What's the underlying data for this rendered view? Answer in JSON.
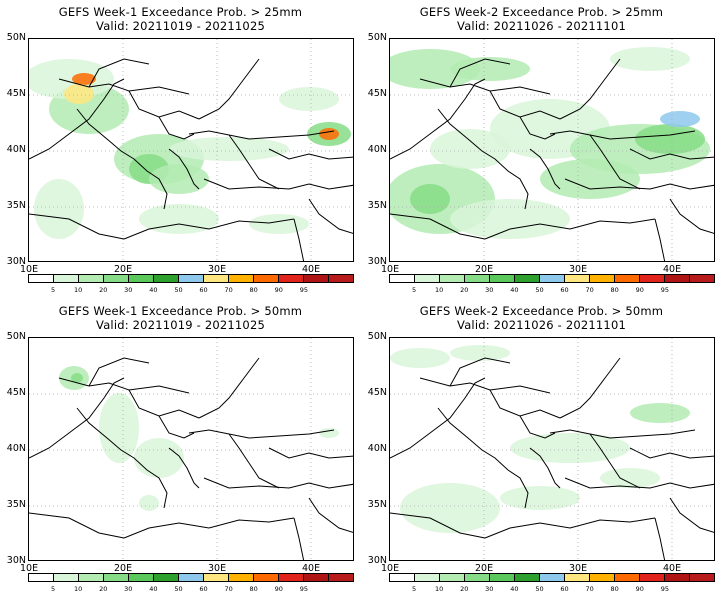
{
  "panels": [
    {
      "title": "GEFS Week-1 Exceedance Prob. > 25mm",
      "valid": "Valid: 20211019 - 20211025",
      "intensity": "w1_25"
    },
    {
      "title": "GEFS Week-2 Exceedance Prob. > 25mm",
      "valid": "Valid: 20211026 - 20211101",
      "intensity": "w2_25"
    },
    {
      "title": "GEFS Week-1 Exceedance Prob. > 50mm",
      "valid": "Valid: 20211019 - 20211025",
      "intensity": "w1_50"
    },
    {
      "title": "GEFS Week-2 Exceedance Prob. > 50mm",
      "valid": "Valid: 20211026 - 20211101",
      "intensity": "w2_50"
    }
  ],
  "lat_ticks": [
    "50N",
    "45N",
    "40N",
    "35N",
    "30N"
  ],
  "lon_ticks": [
    "10E",
    "20E",
    "30E",
    "40E"
  ],
  "colorbar": {
    "labels": [
      "5",
      "10",
      "20",
      "30",
      "40",
      "50",
      "60",
      "70",
      "80",
      "90",
      "95"
    ],
    "colors": [
      "#ffffff",
      "#d9f5d9",
      "#b3ebb3",
      "#86dc86",
      "#5ac85a",
      "#2ea02e",
      "#8ec8ec",
      "#ffe680",
      "#ffb300",
      "#ff6a00",
      "#e0241c",
      "#b01515",
      "#b81b1b"
    ]
  }
}
